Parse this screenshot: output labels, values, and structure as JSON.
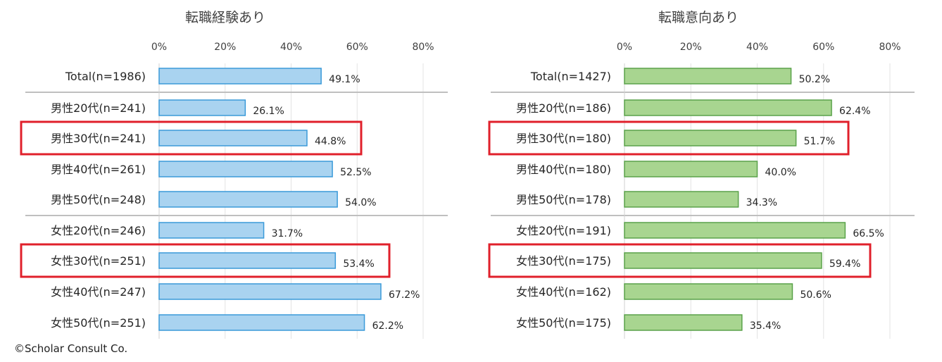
{
  "colors": {
    "left_bar": "#a9d3f0",
    "left_stroke": "#3a9ad9",
    "right_bar": "#a8d590",
    "right_stroke": "#5aa24a",
    "highlight": "#e0202b"
  },
  "copyright": "©Scholar Consult Co.",
  "chart_data": [
    {
      "type": "bar",
      "orientation": "horizontal",
      "title": "転職経験あり",
      "xlim": [
        0,
        80
      ],
      "x_ticks": [
        "0%",
        "20%",
        "40%",
        "60%",
        "80%"
      ],
      "categories": [
        "Total(n=1986)",
        "男性20代(n=241)",
        "男性30代(n=241)",
        "男性40代(n=261)",
        "男性50代(n=248)",
        "女性20代(n=246)",
        "女性30代(n=251)",
        "女性40代(n=247)",
        "女性50代(n=251)"
      ],
      "values": [
        49.1,
        26.1,
        44.8,
        52.5,
        54.0,
        31.7,
        53.4,
        67.2,
        62.2
      ],
      "labels": [
        "49.1%",
        "26.1%",
        "44.8%",
        "52.5%",
        "54.0%",
        "31.7%",
        "53.4%",
        "67.2%",
        "62.2%"
      ],
      "highlighted": [
        "男性30代(n=241)",
        "女性30代(n=251)"
      ],
      "grid": true
    },
    {
      "type": "bar",
      "orientation": "horizontal",
      "title": "転職意向あり",
      "xlim": [
        0,
        80
      ],
      "x_ticks": [
        "0%",
        "20%",
        "40%",
        "60%",
        "80%"
      ],
      "categories": [
        "Total(n=1427)",
        "男性20代(n=186)",
        "男性30代(n=180)",
        "男性40代(n=180)",
        "男性50代(n=178)",
        "女性20代(n=191)",
        "女性30代(n=175)",
        "女性40代(n=162)",
        "女性50代(n=175)"
      ],
      "values": [
        50.2,
        62.4,
        51.7,
        40.0,
        34.3,
        66.5,
        59.4,
        50.6,
        35.4
      ],
      "labels": [
        "50.2%",
        "62.4%",
        "51.7%",
        "40.0%",
        "34.3%",
        "66.5%",
        "59.4%",
        "50.6%",
        "35.4%"
      ],
      "highlighted": [
        "男性30代(n=180)",
        "女性30代(n=175)"
      ],
      "grid": true
    }
  ]
}
